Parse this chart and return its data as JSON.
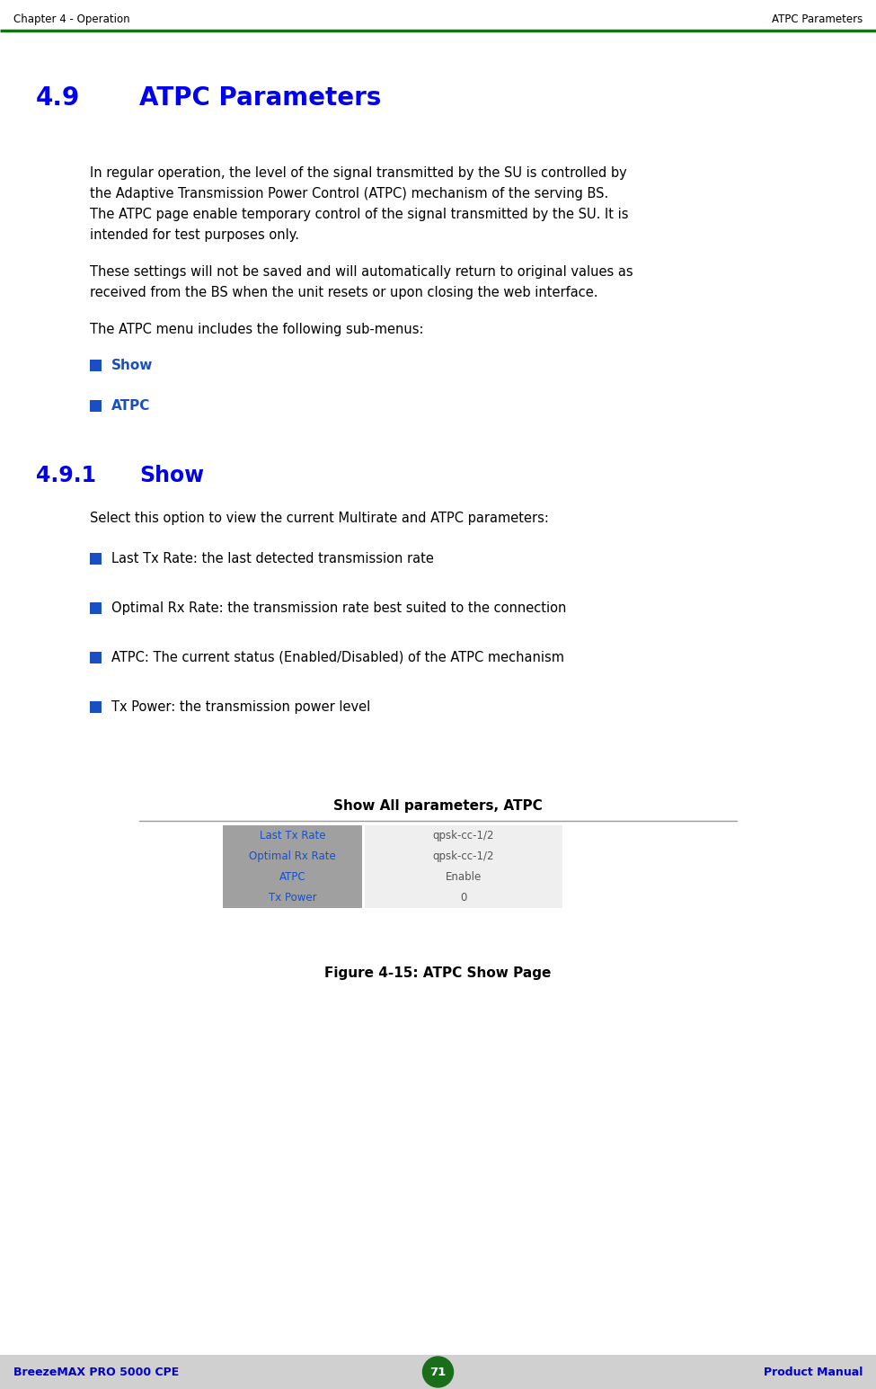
{
  "header_left": "Chapter 4 - Operation",
  "header_right": "ATPC Parameters",
  "header_line_color": "#008000",
  "footer_left": "BreezeMAX PRO 5000 CPE",
  "footer_center": "71",
  "footer_right": "Product Manual",
  "footer_bg": "#d0d0d0",
  "footer_text_color": "#0000cc",
  "footer_circle_color": "#1a6e1a",
  "section_number": "4.9",
  "section_title": "ATPC Parameters",
  "section_title_color": "#0000ee",
  "body_text_color": "#000000",
  "para1_lines": [
    "In regular operation, the level of the signal transmitted by the SU is controlled by",
    "the Adaptive Transmission Power Control (ATPC) mechanism of the serving BS.",
    "The ATPC page enable temporary control of the signal transmitted by the SU. It is",
    "intended for test purposes only."
  ],
  "para2_lines": [
    "These settings will not be saved and will automatically return to original values as",
    "received from the BS when the unit resets or upon closing the web interface."
  ],
  "para3": "The ATPC menu includes the following sub-menus:",
  "bullet_items_1": [
    "Show",
    "ATPC"
  ],
  "subsection_number": "4.9.1",
  "subsection_title": "Show",
  "subsection_text": "Select this option to view the current Multirate and ATPC parameters:",
  "bullet_items_2": [
    "Last Tx Rate: the last detected transmission rate",
    "Optimal Rx Rate: the transmission rate best suited to the connection",
    "ATPC: The current status (Enabled/Disabled) of the ATPC mechanism",
    "Tx Power: the transmission power level"
  ],
  "bullet_color": "#1a4fc4",
  "table_title": "Show All parameters, ATPC",
  "table_title_color": "#000000",
  "table_line_color": "#999999",
  "table_rows": [
    {
      "label": "Last Tx Rate",
      "value": "qpsk-cc-1/2"
    },
    {
      "label": "Optimal Rx Rate",
      "value": "qpsk-cc-1/2"
    },
    {
      "label": "ATPC",
      "value": "Enable"
    },
    {
      "label": "Tx Power",
      "value": "0"
    }
  ],
  "table_label_bg": "#a0a0a0",
  "table_value_bg": "#efefef",
  "table_label_color": "#1a4fc4",
  "table_value_color": "#555555",
  "figure_caption": "Figure 4-15: ATPC Show Page",
  "bg_color": "#ffffff"
}
